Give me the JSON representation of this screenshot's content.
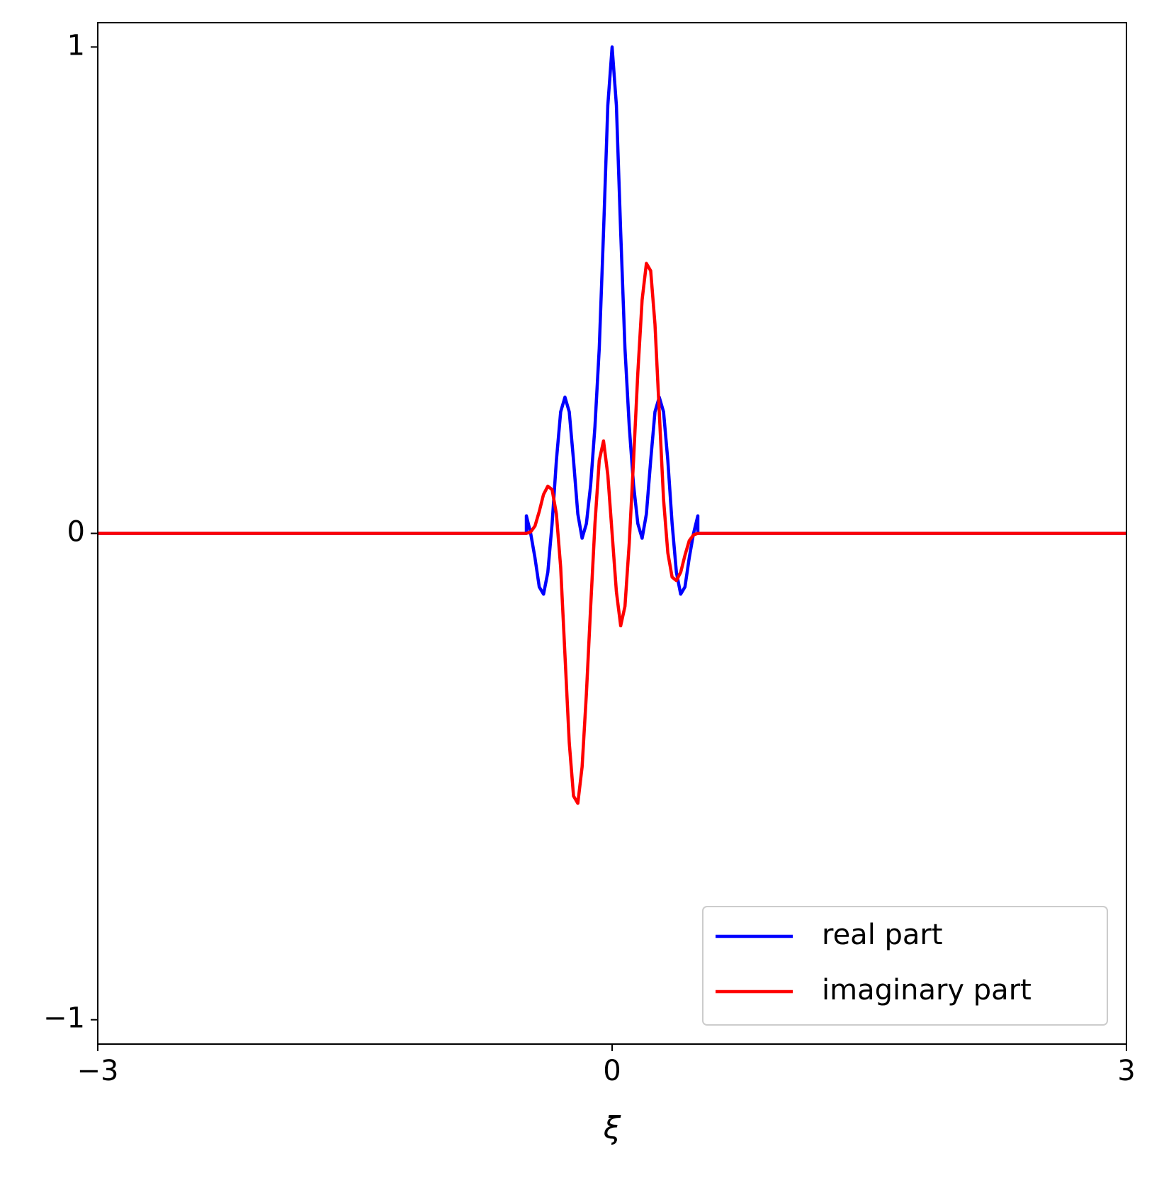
{
  "chart_data": {
    "type": "line",
    "xlabel": "ξ",
    "x": [
      -3,
      -0.5,
      -0.5,
      -0.475,
      -0.45,
      -0.425,
      -0.4,
      -0.375,
      -0.35,
      -0.325,
      -0.3,
      -0.275,
      -0.25,
      -0.225,
      -0.2,
      -0.175,
      -0.15,
      -0.125,
      -0.1,
      -0.075,
      -0.05,
      -0.025,
      0,
      0.025,
      0.05,
      0.075,
      0.1,
      0.125,
      0.15,
      0.175,
      0.2,
      0.225,
      0.25,
      0.275,
      0.3,
      0.325,
      0.35,
      0.375,
      0.4,
      0.425,
      0.45,
      0.475,
      0.5,
      0.5,
      3
    ],
    "series": [
      {
        "name": "real part",
        "color": "#0000ff",
        "values": [
          0,
          0,
          0.036,
          0.0,
          -0.05,
          -0.11,
          -0.125,
          -0.08,
          0.02,
          0.15,
          0.25,
          0.28,
          0.25,
          0.15,
          0.04,
          -0.01,
          0.02,
          0.1,
          0.22,
          0.38,
          0.62,
          0.88,
          1.0,
          0.88,
          0.62,
          0.38,
          0.22,
          0.1,
          0.02,
          -0.01,
          0.04,
          0.15,
          0.25,
          0.28,
          0.25,
          0.15,
          0.02,
          -0.08,
          -0.125,
          -0.11,
          -0.05,
          0.0,
          0.036,
          0,
          0
        ]
      },
      {
        "name": "imaginary part",
        "color": "#ff0000",
        "values": [
          0,
          0,
          0,
          0.003,
          0.015,
          0.045,
          0.08,
          0.097,
          0.09,
          0.04,
          -0.07,
          -0.25,
          -0.43,
          -0.54,
          -0.555,
          -0.48,
          -0.33,
          -0.15,
          0.02,
          0.15,
          0.19,
          0.12,
          0,
          -0.12,
          -0.19,
          -0.15,
          -0.02,
          0.15,
          0.33,
          0.48,
          0.555,
          0.54,
          0.43,
          0.25,
          0.07,
          -0.04,
          -0.09,
          -0.097,
          -0.08,
          -0.045,
          -0.015,
          -0.003,
          0,
          0,
          0
        ]
      }
    ],
    "xlim": [
      -3,
      3
    ],
    "ylim": [
      -1.05,
      1.05
    ],
    "xticks": [
      {
        "value": -3,
        "label": "−3"
      },
      0,
      3
    ],
    "yticks": [
      {
        "value": -1,
        "label": "−1"
      },
      0,
      1
    ],
    "grid": false,
    "legend": "lower right"
  }
}
